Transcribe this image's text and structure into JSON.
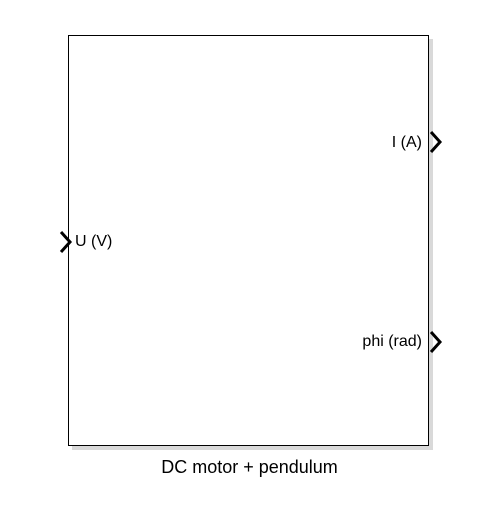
{
  "block": {
    "name": "DC motor + pendulum",
    "inputs": [
      {
        "label": "U (V)"
      }
    ],
    "outputs": [
      {
        "label": "I (A)"
      },
      {
        "label": "phi (rad)"
      }
    ]
  },
  "colors": {
    "border": "#000000",
    "shadow": "#d9d9d9",
    "background": "#ffffff"
  },
  "icons": {
    "port": "chevron-right-icon"
  }
}
